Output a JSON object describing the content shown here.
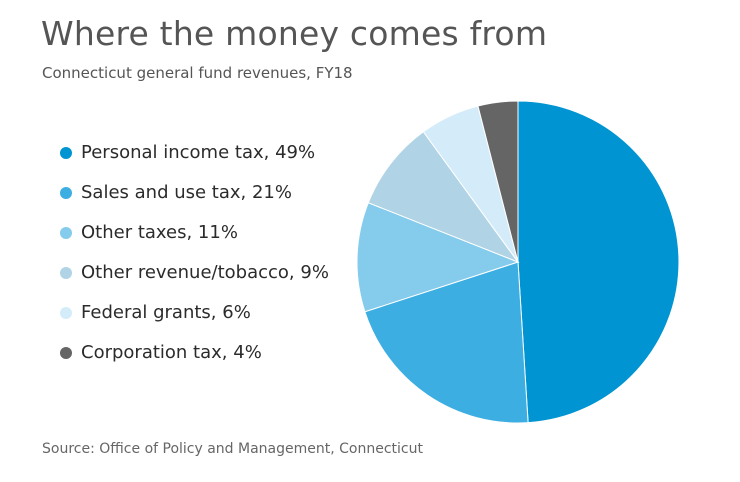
{
  "chart_data": {
    "type": "pie",
    "title": "Where the money comes from",
    "subtitle": "Connecticut general fund revenues, FY18",
    "source": "Source: Office of Policy and Management, Connecticut",
    "legend_position": "left",
    "slices": [
      {
        "name": "Personal income tax",
        "value": 49,
        "label": "Personal income tax, 49%",
        "color": "#0095d2"
      },
      {
        "name": "Sales and use tax",
        "value": 21,
        "label": "Sales and use tax, 21%",
        "color": "#3daee2"
      },
      {
        "name": "Other taxes",
        "value": 11,
        "label": "Other taxes, 11%",
        "color": "#84cbec"
      },
      {
        "name": "Other revenue/tobacco",
        "value": 9,
        "label": "Other revenue/tobacco, 9%",
        "color": "#b0d3e5"
      },
      {
        "name": "Federal grants",
        "value": 6,
        "label": "Federal grants, 6%",
        "color": "#d4ecfa"
      },
      {
        "name": "Corporation tax",
        "value": 4,
        "label": "Corporation tax, 4%",
        "color": "#656565"
      }
    ]
  }
}
